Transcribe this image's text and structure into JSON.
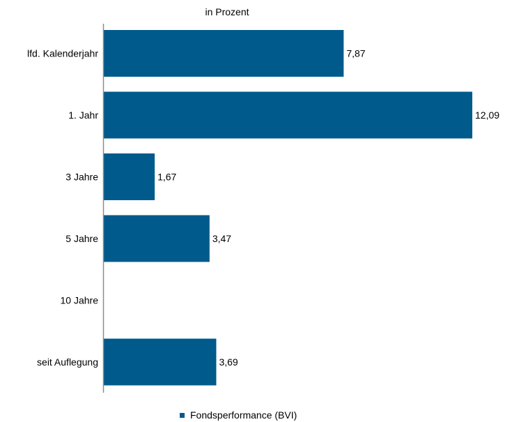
{
  "chart_data": {
    "type": "bar",
    "orientation": "horizontal",
    "unit_label": "in Prozent",
    "categories": [
      "lfd. Kalenderjahr",
      "1. Jahr",
      "3 Jahre",
      "5 Jahre",
      "10 Jahre",
      "seit Auflegung"
    ],
    "series": [
      {
        "name": "Fondsperformance (BVI)",
        "values": [
          7.87,
          12.09,
          1.67,
          3.47,
          null,
          3.69
        ],
        "value_labels": [
          "7,87",
          "12,09",
          "1,67",
          "3,47",
          "",
          "3,69"
        ]
      }
    ],
    "xlim": [
      0,
      12.09
    ],
    "grid": false,
    "legend_position": "bottom",
    "colors": {
      "bar": "#005A8C",
      "axis": "#8C8C8C",
      "text": "#000000"
    }
  }
}
